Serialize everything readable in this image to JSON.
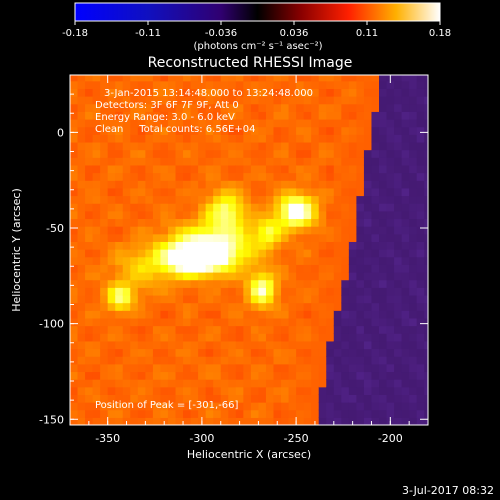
{
  "colorbar": {
    "ticks": [
      "-0.18",
      "-0.11",
      "-0.036",
      "0.036",
      "0.11",
      "0.18"
    ],
    "unit_label": "(photons cm⁻² s⁻¹ asec⁻²)"
  },
  "plot": {
    "title": "Reconstructed RHESSI Image",
    "annotations": [
      "3-Jan-2015 13:14:48.000 to 13:24:48.000",
      "Detectors: 3F 6F 7F 9F, Att 0",
      "Energy Range: 3.0 - 6.0 keV",
      "Clean     Total counts: 6.56E+04"
    ],
    "peak_text": "Position of Peak = [-301,-66]"
  },
  "footer": {
    "timestamp": "3-Jul-2017 08:32"
  },
  "colors": {
    "background": "#000000",
    "foreground": "#ffffff",
    "colormap": "hot"
  },
  "chart_data": {
    "type": "heatmap",
    "title": "Reconstructed RHESSI Image",
    "xlabel": "Heliocentric X (arcsec)",
    "ylabel": "Heliocentric Y (arcsec)",
    "xlim": [
      -370,
      -180
    ],
    "ylim": [
      -153,
      30
    ],
    "xticks": [
      -350,
      -300,
      -250,
      -200
    ],
    "yticks": [
      -150,
      -100,
      -50,
      0
    ],
    "clim": [
      -0.18,
      0.18
    ],
    "limb_boundary": [
      [
        -204,
        30
      ],
      [
        -214,
        -20
      ],
      [
        -222,
        -70
      ],
      [
        -232,
        -110
      ],
      [
        -240,
        -153
      ]
    ],
    "sources": [
      {
        "x": -304,
        "y": -66,
        "peak": 0.18,
        "sx": 10,
        "sy": 5
      },
      {
        "x": -295,
        "y": -60,
        "peak": 0.14,
        "sx": 15,
        "sy": 8
      },
      {
        "x": -250,
        "y": -41,
        "peak": 0.15,
        "sx": 7,
        "sy": 6
      },
      {
        "x": -287,
        "y": -41,
        "peak": 0.1,
        "sx": 7,
        "sy": 7
      },
      {
        "x": -268,
        "y": -82,
        "peak": 0.12,
        "sx": 5,
        "sy": 6
      },
      {
        "x": -343,
        "y": -86,
        "peak": 0.1,
        "sx": 5,
        "sy": 5
      },
      {
        "x": -265,
        "y": -52,
        "peak": 0.08,
        "sx": 5,
        "sy": 5
      },
      {
        "x": -330,
        "y": -70,
        "peak": 0.05,
        "sx": 12,
        "sy": 8
      }
    ],
    "peak_position": [
      -301,
      -66
    ]
  }
}
